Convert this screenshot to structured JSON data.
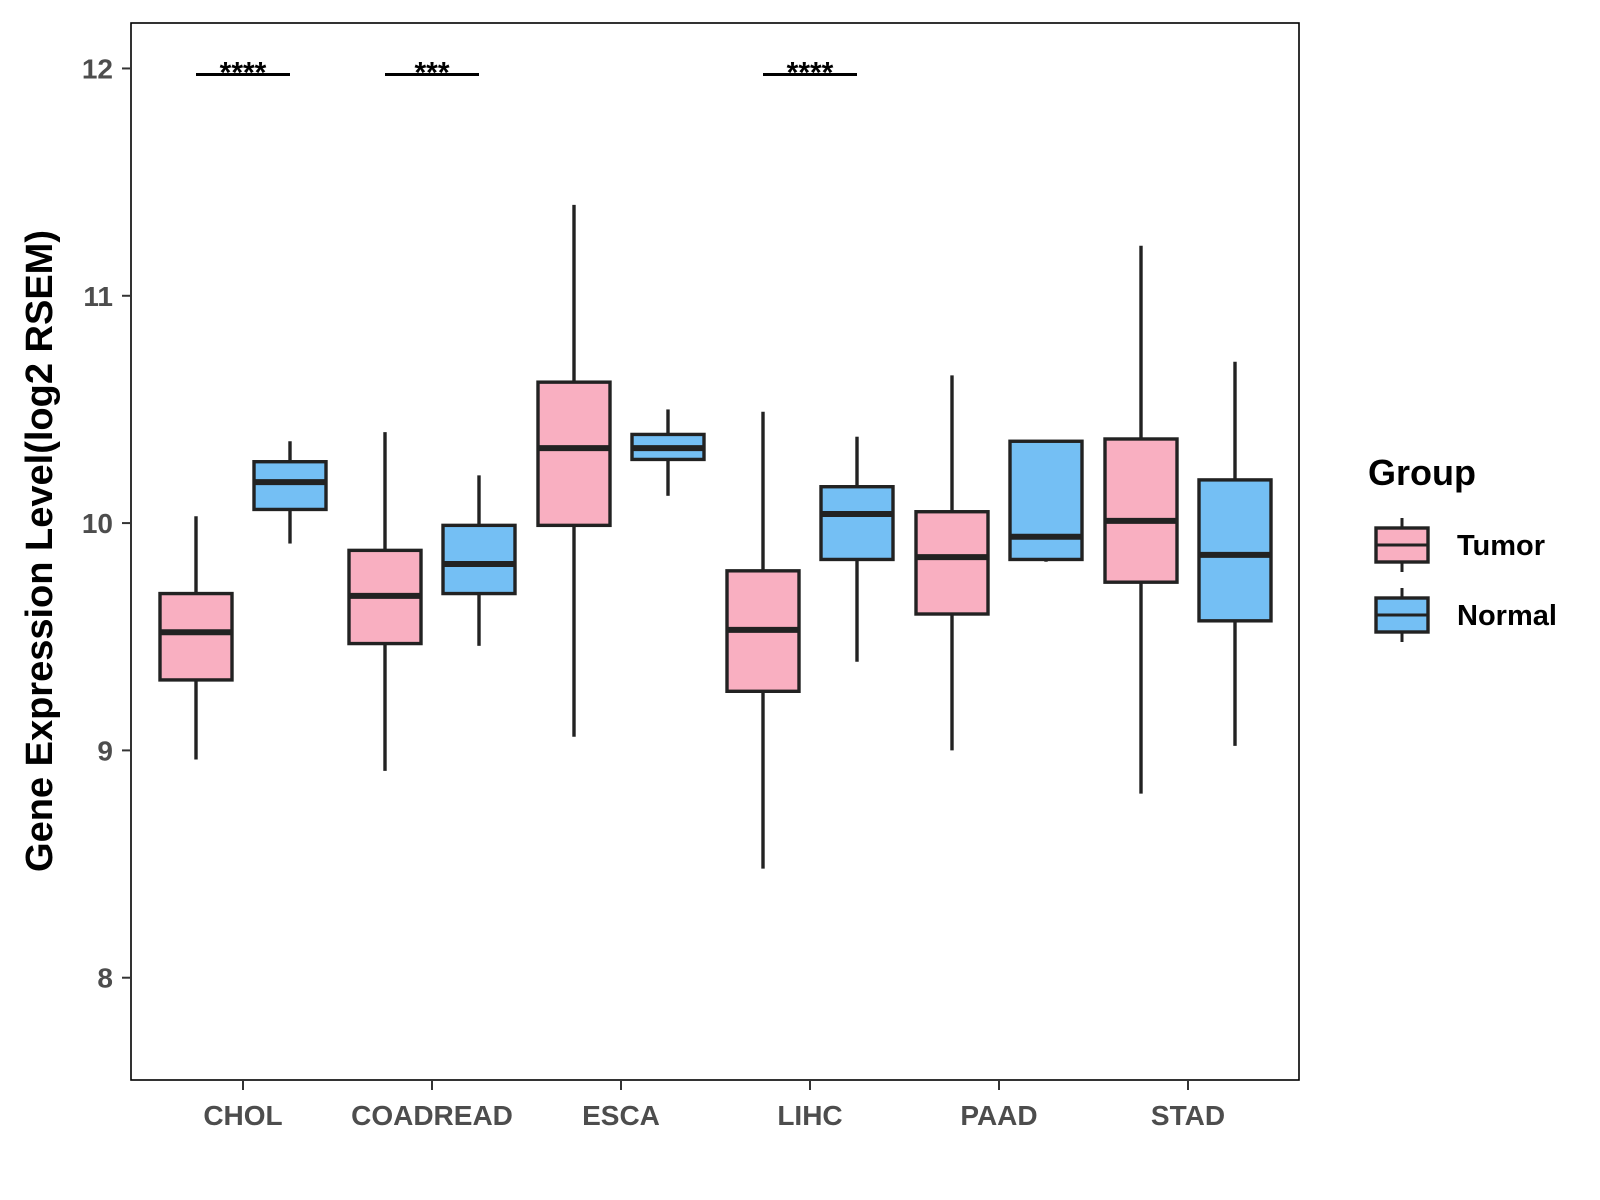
{
  "chart_data": {
    "type": "box",
    "title": "",
    "xlabel": "",
    "ylabel": "Gene Expression Level(log2 RSEM)",
    "ylim": [
      7.55,
      12.2
    ],
    "yticks": [
      8,
      9,
      10,
      11,
      12
    ],
    "categories": [
      "CHOL",
      "COADREAD",
      "ESCA",
      "LIHC",
      "PAAD",
      "STAD"
    ],
    "legend": {
      "title": "Group",
      "position": "right",
      "entries": [
        {
          "name": "Tumor",
          "color": "#F9AFC1"
        },
        {
          "name": "Normal",
          "color": "#74BFF4"
        }
      ]
    },
    "series": [
      {
        "name": "Tumor",
        "color": "#F9AFC1",
        "boxes": [
          {
            "category": "CHOL",
            "min": 8.96,
            "q1": 9.31,
            "median": 9.52,
            "q3": 9.69,
            "max": 10.03
          },
          {
            "category": "COADREAD",
            "min": 8.91,
            "q1": 9.47,
            "median": 9.68,
            "q3": 9.88,
            "max": 10.4
          },
          {
            "category": "ESCA",
            "min": 9.06,
            "q1": 9.99,
            "median": 10.33,
            "q3": 10.62,
            "max": 11.4
          },
          {
            "category": "LIHC",
            "min": 8.48,
            "q1": 9.26,
            "median": 9.53,
            "q3": 9.79,
            "max": 10.49
          },
          {
            "category": "PAAD",
            "min": 9.0,
            "q1": 9.6,
            "median": 9.85,
            "q3": 10.05,
            "max": 10.65
          },
          {
            "category": "STAD",
            "min": 8.81,
            "q1": 9.74,
            "median": 10.01,
            "q3": 10.37,
            "max": 11.22
          }
        ]
      },
      {
        "name": "Normal",
        "color": "#74BFF4",
        "boxes": [
          {
            "category": "CHOL",
            "min": 9.91,
            "q1": 10.06,
            "median": 10.18,
            "q3": 10.27,
            "max": 10.36
          },
          {
            "category": "COADREAD",
            "min": 9.46,
            "q1": 9.69,
            "median": 9.82,
            "q3": 9.99,
            "max": 10.21
          },
          {
            "category": "ESCA",
            "min": 10.12,
            "q1": 10.28,
            "median": 10.33,
            "q3": 10.39,
            "max": 10.5
          },
          {
            "category": "LIHC",
            "min": 9.39,
            "q1": 9.84,
            "median": 10.04,
            "q3": 10.16,
            "max": 10.38
          },
          {
            "category": "PAAD",
            "min": 9.83,
            "q1": 9.84,
            "median": 9.94,
            "q3": 10.36,
            "max": 10.36
          },
          {
            "category": "STAD",
            "min": 9.02,
            "q1": 9.57,
            "median": 9.86,
            "q3": 10.19,
            "max": 10.71
          }
        ]
      }
    ],
    "annotations": [
      {
        "category": "CHOL",
        "label": "****",
        "y": 12
      },
      {
        "category": "COADREAD",
        "label": "***",
        "y": 12
      },
      {
        "category": "LIHC",
        "label": "****",
        "y": 12
      }
    ]
  }
}
